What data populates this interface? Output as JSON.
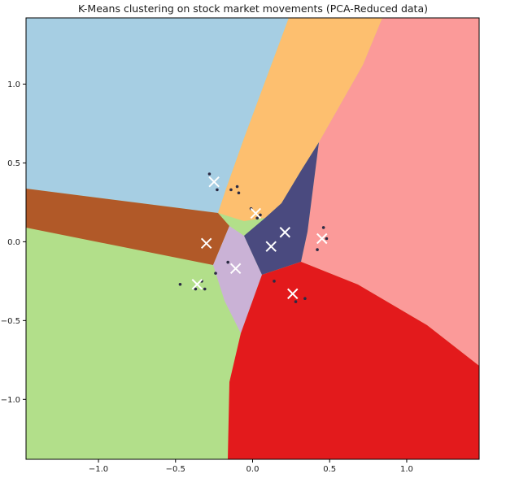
{
  "chart_data": {
    "type": "scatter",
    "title": "K-Means clustering on stock market movements (PCA-Reduced data)",
    "xlabel": "",
    "ylabel": "",
    "xlim": [
      -1.47,
      1.47
    ],
    "ylim": [
      -1.38,
      1.42
    ],
    "xticks": [
      -1.0,
      -0.5,
      0.0,
      0.5,
      1.0
    ],
    "xtick_labels": [
      "−1.0",
      "−0.5",
      "0.0",
      "0.5",
      "1.0"
    ],
    "yticks": [
      -1.0,
      -0.5,
      0.0,
      0.5,
      1.0
    ],
    "ytick_labels": [
      "−1.0",
      "−0.5",
      "0.0",
      "0.5",
      "1.0"
    ],
    "grid": false,
    "legend": "none",
    "region_colors": [
      "#a6cee3",
      "#fdbf6f",
      "#fb9a99",
      "#b15928",
      "#b2df8a",
      "#cab2d6",
      "#e31a1c",
      "#4a4a7f"
    ],
    "centroids": [
      {
        "x": -0.25,
        "y": 0.38
      },
      {
        "x": 0.02,
        "y": 0.18
      },
      {
        "x": 0.45,
        "y": 0.02
      },
      {
        "x": -0.3,
        "y": -0.01
      },
      {
        "x": -0.36,
        "y": -0.27
      },
      {
        "x": -0.11,
        "y": -0.17
      },
      {
        "x": 0.26,
        "y": -0.33
      },
      {
        "x": 0.12,
        "y": -0.03
      },
      {
        "x": 0.21,
        "y": 0.06
      }
    ],
    "points": [
      {
        "x": -0.28,
        "y": 0.43
      },
      {
        "x": -0.23,
        "y": 0.33
      },
      {
        "x": -0.14,
        "y": 0.33
      },
      {
        "x": -0.1,
        "y": 0.35
      },
      {
        "x": -0.09,
        "y": 0.31
      },
      {
        "x": -0.01,
        "y": 0.21
      },
      {
        "x": 0.05,
        "y": 0.17
      },
      {
        "x": 0.03,
        "y": 0.15
      },
      {
        "x": 0.46,
        "y": 0.09
      },
      {
        "x": 0.48,
        "y": 0.02
      },
      {
        "x": 0.42,
        "y": -0.05
      },
      {
        "x": -0.16,
        "y": -0.13
      },
      {
        "x": -0.24,
        "y": -0.2
      },
      {
        "x": -0.33,
        "y": -0.25
      },
      {
        "x": -0.47,
        "y": -0.27
      },
      {
        "x": -0.37,
        "y": -0.3
      },
      {
        "x": -0.31,
        "y": -0.3
      },
      {
        "x": 0.14,
        "y": -0.25
      },
      {
        "x": 0.28,
        "y": -0.38
      },
      {
        "x": 0.34,
        "y": -0.36
      }
    ]
  }
}
